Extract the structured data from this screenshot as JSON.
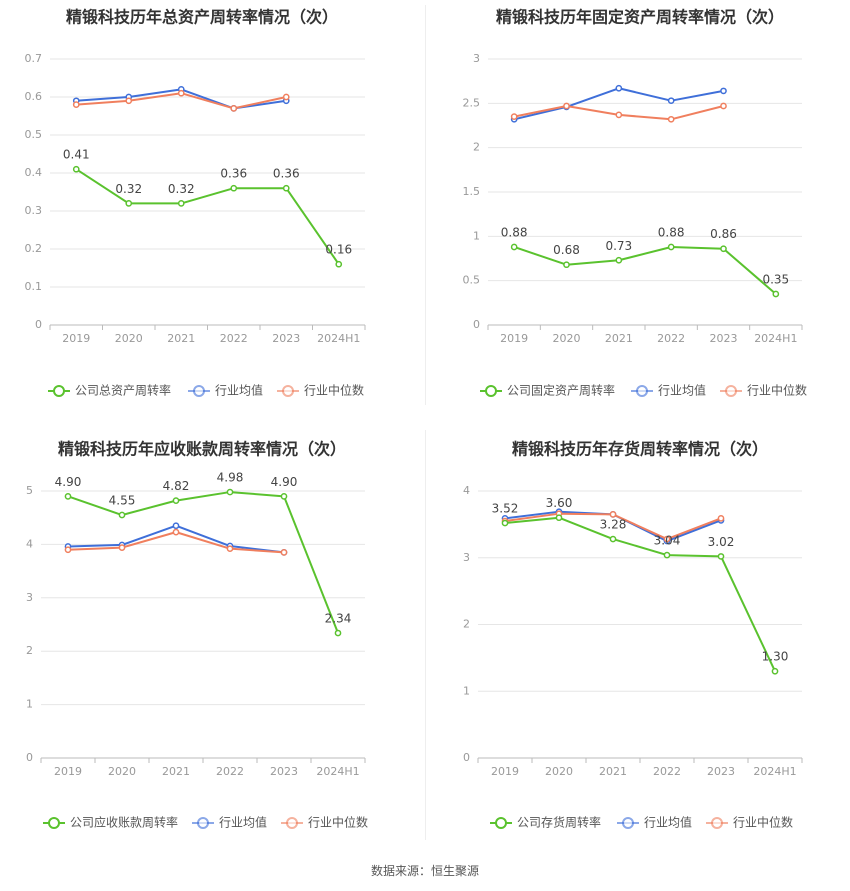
{
  "colors": {
    "company": "#5ac22e",
    "avg": "#3f6fd9",
    "median": "#f07f5e",
    "grid": "#e6e6e6",
    "axis": "#999999"
  },
  "footer": "数据来源：恒生聚源",
  "chart_data": [
    {
      "type": "line",
      "title": "精锻科技历年总资产周转率情况（次）",
      "categories": [
        "2019",
        "2020",
        "2021",
        "2022",
        "2023",
        "2024H1"
      ],
      "ylim": [
        0,
        0.7
      ],
      "yticks": [
        "0",
        "0.1",
        "0.2",
        "0.3",
        "0.4",
        "0.5",
        "0.6",
        "0.7"
      ],
      "legend_position": "bottom",
      "series": [
        {
          "name": "公司总资产周转率",
          "role": "company",
          "values": [
            0.41,
            0.32,
            0.32,
            0.36,
            0.36,
            0.16
          ],
          "labels": [
            "0.41",
            "0.32",
            "0.32",
            "0.36",
            "0.36",
            "0.16"
          ]
        },
        {
          "name": "行业均值",
          "role": "avg",
          "values": [
            0.59,
            0.6,
            0.62,
            0.57,
            0.59,
            null
          ]
        },
        {
          "name": "行业中位数",
          "role": "median",
          "values": [
            0.58,
            0.59,
            0.61,
            0.57,
            0.6,
            null
          ]
        }
      ]
    },
    {
      "type": "line",
      "title": "精锻科技历年固定资产周转率情况（次）",
      "categories": [
        "2019",
        "2020",
        "2021",
        "2022",
        "2023",
        "2024H1"
      ],
      "ylim": [
        0,
        3
      ],
      "yticks": [
        "0",
        "0.5",
        "1",
        "1.5",
        "2",
        "2.5",
        "3"
      ],
      "legend_position": "bottom",
      "series": [
        {
          "name": "公司固定资产周转率",
          "role": "company",
          "values": [
            0.88,
            0.68,
            0.73,
            0.88,
            0.86,
            0.35
          ],
          "labels": [
            "0.88",
            "0.68",
            "0.73",
            "0.88",
            "0.86",
            "0.35"
          ]
        },
        {
          "name": "行业均值",
          "role": "avg",
          "values": [
            2.32,
            2.46,
            2.67,
            2.53,
            2.64,
            null
          ]
        },
        {
          "name": "行业中位数",
          "role": "median",
          "values": [
            2.35,
            2.47,
            2.37,
            2.32,
            2.47,
            null
          ]
        }
      ]
    },
    {
      "type": "line",
      "title": "精锻科技历年应收账款周转率情况（次）",
      "categories": [
        "2019",
        "2020",
        "2021",
        "2022",
        "2023",
        "2024H1"
      ],
      "ylim": [
        0,
        5
      ],
      "yticks": [
        "0",
        "1",
        "2",
        "3",
        "4",
        "5"
      ],
      "legend_position": "bottom",
      "series": [
        {
          "name": "公司应收账款周转率",
          "role": "company",
          "values": [
            4.9,
            4.55,
            4.82,
            4.98,
            4.9,
            2.34
          ],
          "labels": [
            "4.90",
            "4.55",
            "4.82",
            "4.98",
            "4.90",
            "2.34"
          ]
        },
        {
          "name": "行业均值",
          "role": "avg",
          "values": [
            3.96,
            3.99,
            4.35,
            3.97,
            3.85,
            null
          ]
        },
        {
          "name": "行业中位数",
          "role": "median",
          "values": [
            3.9,
            3.94,
            4.23,
            3.92,
            3.85,
            null
          ]
        }
      ]
    },
    {
      "type": "line",
      "title": "精锻科技历年存货周转率情况（次）",
      "categories": [
        "2019",
        "2020",
        "2021",
        "2022",
        "2023",
        "2024H1"
      ],
      "ylim": [
        0,
        4
      ],
      "yticks": [
        "0",
        "1",
        "2",
        "3",
        "4"
      ],
      "legend_position": "bottom",
      "series": [
        {
          "name": "公司存货周转率",
          "role": "company",
          "values": [
            3.52,
            3.6,
            3.28,
            3.04,
            3.02,
            1.3
          ],
          "labels": [
            "3.52",
            "3.60",
            "3.28",
            "3.04",
            "3.02",
            "1.30"
          ]
        },
        {
          "name": "行业均值",
          "role": "avg",
          "values": [
            3.59,
            3.69,
            3.65,
            3.25,
            3.56,
            null
          ]
        },
        {
          "name": "行业中位数",
          "role": "median",
          "values": [
            3.55,
            3.66,
            3.65,
            3.28,
            3.59,
            null
          ]
        }
      ]
    }
  ]
}
